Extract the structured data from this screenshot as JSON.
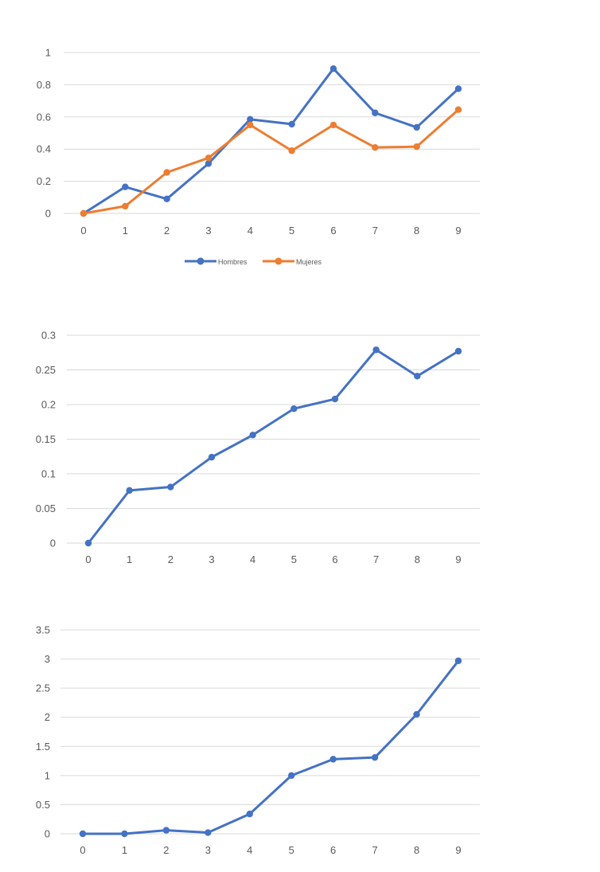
{
  "chart_data": [
    {
      "type": "line",
      "title": "",
      "xlabel": "",
      "ylabel": "",
      "x": [
        0,
        1,
        2,
        3,
        4,
        5,
        6,
        7,
        8,
        9
      ],
      "y_ticks": [
        "0",
        "0.2",
        "0.4",
        "0.6",
        "0.8",
        "1"
      ],
      "x_ticks": [
        "0",
        "1",
        "2",
        "3",
        "4",
        "5",
        "6",
        "7",
        "8",
        "9"
      ],
      "ylim": [
        0,
        1
      ],
      "grid": true,
      "legend_position": "bottom",
      "series": [
        {
          "name": "Hombres",
          "color": "#4472C4",
          "values": [
            0.0,
            0.165,
            0.09,
            0.31,
            0.585,
            0.555,
            0.9,
            0.625,
            0.535,
            0.775
          ]
        },
        {
          "name": "Mujeres",
          "color": "#ED7D31",
          "values": [
            0.0,
            0.045,
            0.255,
            0.345,
            0.55,
            0.39,
            0.55,
            0.41,
            0.415,
            0.645
          ]
        }
      ]
    },
    {
      "type": "line",
      "title": "",
      "xlabel": "",
      "ylabel": "",
      "x": [
        0,
        1,
        2,
        3,
        4,
        5,
        6,
        7,
        8,
        9
      ],
      "y_ticks": [
        "0",
        "0.05",
        "0.1",
        "0.15",
        "0.2",
        "0.25",
        "0.3"
      ],
      "x_ticks": [
        "0",
        "1",
        "2",
        "3",
        "4",
        "5",
        "6",
        "7",
        "8",
        "9"
      ],
      "ylim": [
        0,
        0.3
      ],
      "grid": true,
      "series": [
        {
          "color": "#4472C4",
          "values": [
            0.0,
            0.076,
            0.081,
            0.124,
            0.156,
            0.194,
            0.208,
            0.279,
            0.241,
            0.277
          ]
        }
      ]
    },
    {
      "type": "line",
      "title": "",
      "xlabel": "",
      "ylabel": "",
      "x": [
        0,
        1,
        2,
        3,
        4,
        5,
        6,
        7,
        8,
        9
      ],
      "y_ticks": [
        "0",
        "0.5",
        "1",
        "1.5",
        "2",
        "2.5",
        "3",
        "3.5"
      ],
      "x_ticks": [
        "0",
        "1",
        "2",
        "3",
        "4",
        "5",
        "6",
        "7",
        "8",
        "9"
      ],
      "ylim": [
        0,
        3.5
      ],
      "grid": true,
      "series": [
        {
          "color": "#4472C4",
          "values": [
            0.0,
            0.0,
            0.06,
            0.02,
            0.34,
            1.0,
            1.28,
            1.31,
            2.05,
            2.97
          ]
        }
      ]
    }
  ]
}
